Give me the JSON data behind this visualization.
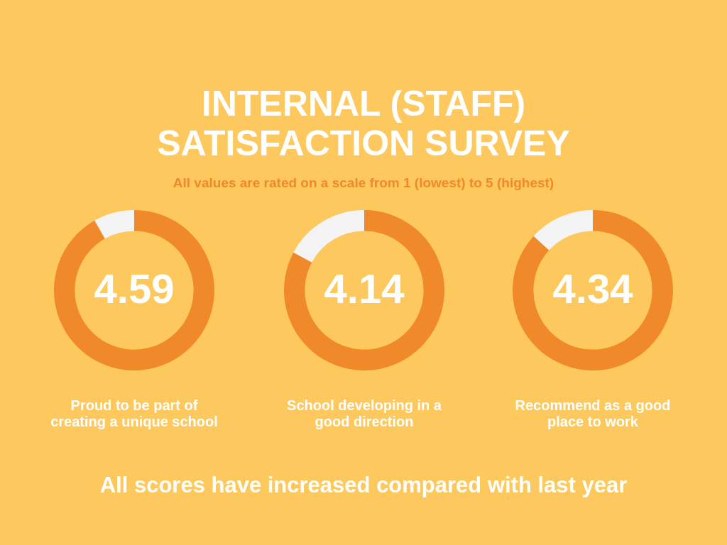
{
  "chart_data": [
    {
      "type": "other",
      "title": "INTERNAL (STAFF) SATISFACTION SURVEY",
      "subtitle": "All values are rated on a scale from 1 (lowest) to 5 (highest)",
      "annotations": [
        "All scores have increased compared with last year"
      ]
    },
    {
      "type": "donut",
      "categories": [
        null,
        null
      ],
      "values": [
        4.59,
        0.41
      ],
      "colors": [
        "#f0892a",
        "#f4f4f4"
      ],
      "value_labels": [
        "4.59",
        null
      ],
      "annotations": [
        "Proud to be part of creating a unique school"
      ]
    },
    {
      "type": "donut",
      "categories": [
        null,
        null
      ],
      "values": [
        4.14,
        0.86
      ],
      "colors": [
        "#f0892a",
        "#f4f4f4"
      ],
      "value_labels": [
        "4.14",
        null
      ],
      "annotations": [
        "School developing in a good direction"
      ]
    },
    {
      "type": "donut",
      "categories": [
        null,
        null
      ],
      "values": [
        4.34,
        0.66
      ],
      "colors": [
        "#f0892a",
        "#f4f4f4"
      ],
      "value_labels": [
        "4.34",
        null
      ],
      "annotations": [
        "Recommend as a good place to work"
      ]
    }
  ]
}
